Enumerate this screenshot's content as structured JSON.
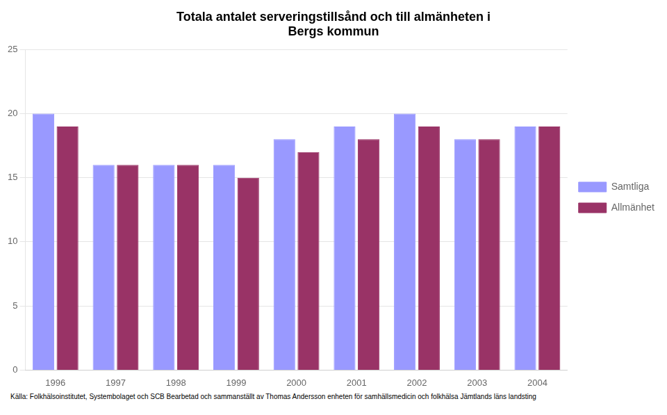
{
  "chart_data": {
    "type": "bar",
    "title": "Totala antalet serveringstillsånd och till almänheten i\nBergs kommun",
    "annotations": [
      "Källa: Folkhälsoinstitutet, Systembolaget och SCB  Bearbetad och sammanställt av Thomas Andersson enheten för samhällsmedicin och folkhälsa Jämtlands läns landsting"
    ],
    "categories": [
      "1996",
      "1997",
      "1998",
      "1999",
      "2000",
      "2001",
      "2002",
      "2003",
      "2004"
    ],
    "series": [
      {
        "name": "Samtliga",
        "color": "#9999FF",
        "values": [
          20,
          16,
          16,
          16,
          18,
          19,
          20,
          18,
          19
        ]
      },
      {
        "name": "Allmänhet",
        "color": "#993366",
        "values": [
          19,
          16,
          16,
          15,
          17,
          18,
          19,
          18,
          19
        ]
      }
    ],
    "ylim": [
      0,
      25
    ],
    "yticks": [
      0,
      5,
      10,
      15,
      20,
      25
    ],
    "grid": true,
    "legend": "right"
  }
}
